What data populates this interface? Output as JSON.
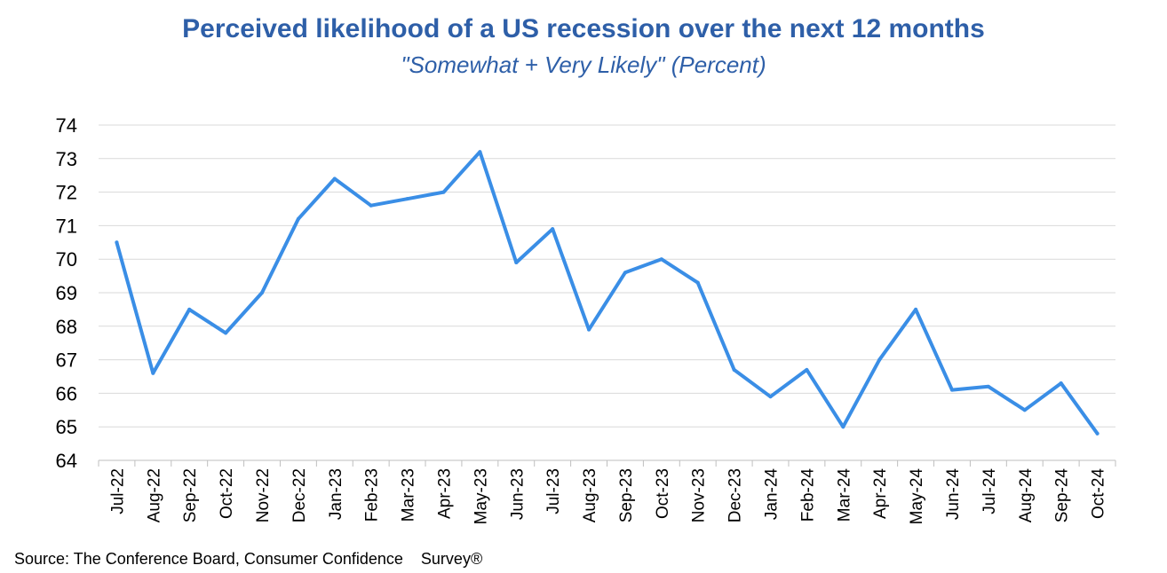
{
  "chart_data": {
    "type": "line",
    "title": "Perceived likelihood of a US recession over the next 12 months",
    "subtitle": "\"Somewhat + Very Likely\" (Percent)",
    "source": "Source: The Conference Board, Consumer Confidence    Survey®",
    "categories": [
      "Jul-22",
      "Aug-22",
      "Sep-22",
      "Oct-22",
      "Nov-22",
      "Dec-22",
      "Jan-23",
      "Feb-23",
      "Mar-23",
      "Apr-23",
      "May-23",
      "Jun-23",
      "Jul-23",
      "Aug-23",
      "Sep-23",
      "Oct-23",
      "Nov-23",
      "Dec-23",
      "Jan-24",
      "Feb-24",
      "Mar-24",
      "Apr-24",
      "May-24",
      "Jun-24",
      "Jul-24",
      "Aug-24",
      "Sep-24",
      "Oct-24"
    ],
    "series": [
      {
        "values": [
          70.5,
          66.6,
          68.5,
          67.8,
          69.0,
          71.2,
          72.4,
          71.6,
          71.8,
          72.0,
          73.2,
          69.9,
          70.9,
          67.9,
          69.6,
          70.0,
          69.3,
          66.7,
          65.9,
          66.7,
          65.0,
          67.0,
          68.5,
          66.1,
          66.2,
          65.5,
          66.3,
          64.8
        ]
      }
    ],
    "yticks": [
      64,
      65,
      66,
      67,
      68,
      69,
      70,
      71,
      72,
      73,
      74
    ],
    "ylim": [
      64,
      74
    ],
    "grid": true,
    "line_color": "#3a8ee6",
    "grid_color": "#d9d9d9"
  }
}
